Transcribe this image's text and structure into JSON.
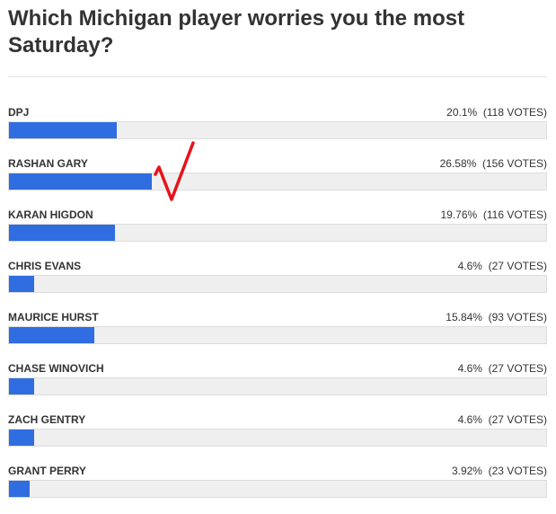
{
  "poll": {
    "title": "Which Michigan player worries you the most Saturday?",
    "accent_color": "#2f6de0",
    "options": [
      {
        "label": "DPJ",
        "percent": 20.1,
        "percent_text": "20.1%",
        "votes_text": "(118 VOTES)"
      },
      {
        "label": "RASHAN GARY",
        "percent": 26.58,
        "percent_text": "26.58%",
        "votes_text": "(156 VOTES)"
      },
      {
        "label": "KARAN HIGDON",
        "percent": 19.76,
        "percent_text": "19.76%",
        "votes_text": "(116 VOTES)"
      },
      {
        "label": "CHRIS EVANS",
        "percent": 4.6,
        "percent_text": "4.6%",
        "votes_text": "(27 VOTES)"
      },
      {
        "label": "MAURICE HURST",
        "percent": 15.84,
        "percent_text": "15.84%",
        "votes_text": "(93 VOTES)"
      },
      {
        "label": "CHASE WINOVICH",
        "percent": 4.6,
        "percent_text": "4.6%",
        "votes_text": "(27 VOTES)"
      },
      {
        "label": "ZACH GENTRY",
        "percent": 4.6,
        "percent_text": "4.6%",
        "votes_text": "(27 VOTES)"
      },
      {
        "label": "GRANT PERRY",
        "percent": 3.92,
        "percent_text": "3.92%",
        "votes_text": "(23 VOTES)"
      }
    ],
    "marked_option": "RASHAN GARY",
    "mark_icon": "red-checkmark-icon",
    "mark_color": "#e8121a"
  }
}
